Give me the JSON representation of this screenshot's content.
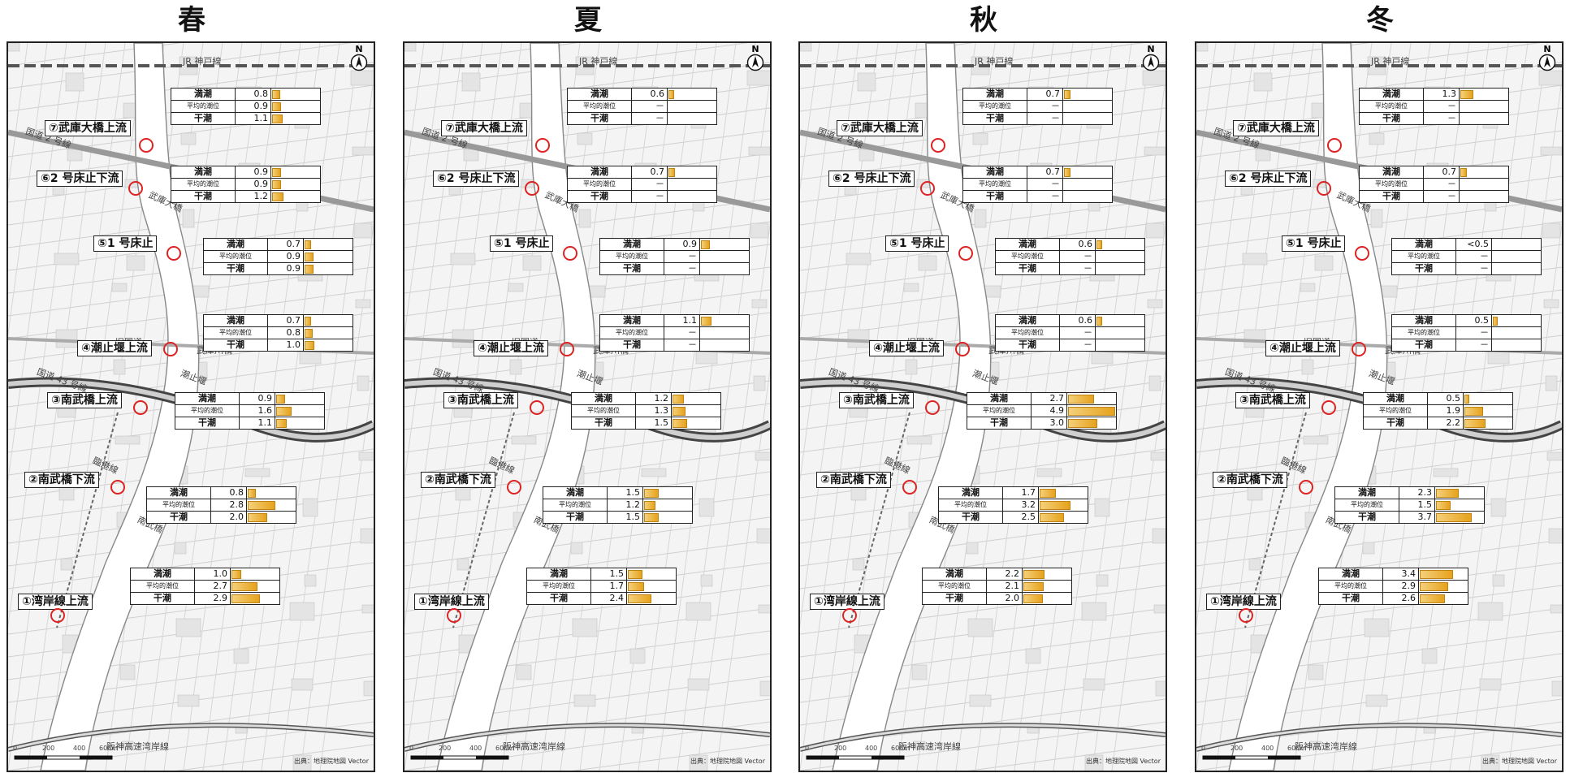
{
  "panels": [
    {
      "season": "春",
      "tables": [
        {
          "rows": [
            {
              "label": "満潮",
              "value": "0.8",
              "bar": 0.8
            },
            {
              "label": "平均的潮位",
              "value": "0.9",
              "bar": 0.9
            },
            {
              "label": "干潮",
              "value": "1.1",
              "bar": 1.1
            }
          ]
        },
        {
          "rows": [
            {
              "label": "満潮",
              "value": "0.9",
              "bar": 0.9
            },
            {
              "label": "平均的潮位",
              "value": "0.9",
              "bar": 0.9
            },
            {
              "label": "干潮",
              "value": "1.2",
              "bar": 1.2
            }
          ]
        },
        {
          "rows": [
            {
              "label": "満潮",
              "value": "0.7",
              "bar": 0.7
            },
            {
              "label": "平均的潮位",
              "value": "0.9",
              "bar": 0.9
            },
            {
              "label": "干潮",
              "value": "0.9",
              "bar": 0.9
            }
          ]
        },
        {
          "rows": [
            {
              "label": "満潮",
              "value": "0.7",
              "bar": 0.7
            },
            {
              "label": "平均的潮位",
              "value": "0.8",
              "bar": 0.8
            },
            {
              "label": "干潮",
              "value": "1.0",
              "bar": 1.0
            }
          ]
        },
        {
          "rows": [
            {
              "label": "満潮",
              "value": "0.9",
              "bar": 0.9
            },
            {
              "label": "平均的潮位",
              "value": "1.6",
              "bar": 1.6
            },
            {
              "label": "干潮",
              "value": "1.1",
              "bar": 1.1
            }
          ]
        },
        {
          "rows": [
            {
              "label": "満潮",
              "value": "0.8",
              "bar": 0.8
            },
            {
              "label": "平均的潮位",
              "value": "2.8",
              "bar": 2.8
            },
            {
              "label": "干潮",
              "value": "2.0",
              "bar": 2.0
            }
          ]
        },
        {
          "rows": [
            {
              "label": "満潮",
              "value": "1.0",
              "bar": 1.0
            },
            {
              "label": "平均的潮位",
              "value": "2.7",
              "bar": 2.7
            },
            {
              "label": "干潮",
              "value": "2.9",
              "bar": 2.9
            }
          ]
        }
      ]
    },
    {
      "season": "夏",
      "tables": [
        {
          "rows": [
            {
              "label": "満潮",
              "value": "0.6",
              "bar": 0.6
            },
            {
              "label": "平均的潮位",
              "value": "－",
              "bar": null
            },
            {
              "label": "干潮",
              "value": "－",
              "bar": null
            }
          ]
        },
        {
          "rows": [
            {
              "label": "満潮",
              "value": "0.7",
              "bar": 0.7
            },
            {
              "label": "平均的潮位",
              "value": "－",
              "bar": null
            },
            {
              "label": "干潮",
              "value": "－",
              "bar": null
            }
          ]
        },
        {
          "rows": [
            {
              "label": "満潮",
              "value": "0.9",
              "bar": 0.9
            },
            {
              "label": "平均的潮位",
              "value": "－",
              "bar": null
            },
            {
              "label": "干潮",
              "value": "－",
              "bar": null
            }
          ]
        },
        {
          "rows": [
            {
              "label": "満潮",
              "value": "1.1",
              "bar": 1.1
            },
            {
              "label": "平均的潮位",
              "value": "－",
              "bar": null
            },
            {
              "label": "干潮",
              "value": "－",
              "bar": null
            }
          ]
        },
        {
          "rows": [
            {
              "label": "満潮",
              "value": "1.2",
              "bar": 1.2
            },
            {
              "label": "平均的潮位",
              "value": "1.3",
              "bar": 1.3
            },
            {
              "label": "干潮",
              "value": "1.5",
              "bar": 1.5
            }
          ]
        },
        {
          "rows": [
            {
              "label": "満潮",
              "value": "1.5",
              "bar": 1.5
            },
            {
              "label": "平均的潮位",
              "value": "1.2",
              "bar": 1.2
            },
            {
              "label": "干潮",
              "value": "1.5",
              "bar": 1.5
            }
          ]
        },
        {
          "rows": [
            {
              "label": "満潮",
              "value": "1.5",
              "bar": 1.5
            },
            {
              "label": "平均的潮位",
              "value": "1.7",
              "bar": 1.7
            },
            {
              "label": "干潮",
              "value": "2.4",
              "bar": 2.4
            }
          ]
        }
      ]
    },
    {
      "season": "秋",
      "tables": [
        {
          "rows": [
            {
              "label": "満潮",
              "value": "0.7",
              "bar": 0.7
            },
            {
              "label": "平均的潮位",
              "value": "－",
              "bar": null
            },
            {
              "label": "干潮",
              "value": "－",
              "bar": null
            }
          ]
        },
        {
          "rows": [
            {
              "label": "満潮",
              "value": "0.7",
              "bar": 0.7
            },
            {
              "label": "平均的潮位",
              "value": "－",
              "bar": null
            },
            {
              "label": "干潮",
              "value": "－",
              "bar": null
            }
          ]
        },
        {
          "rows": [
            {
              "label": "満潮",
              "value": "0.6",
              "bar": 0.6
            },
            {
              "label": "平均的潮位",
              "value": "－",
              "bar": null
            },
            {
              "label": "干潮",
              "value": "－",
              "bar": null
            }
          ]
        },
        {
          "rows": [
            {
              "label": "満潮",
              "value": "0.6",
              "bar": 0.6
            },
            {
              "label": "平均的潮位",
              "value": "－",
              "bar": null
            },
            {
              "label": "干潮",
              "value": "－",
              "bar": null
            }
          ]
        },
        {
          "rows": [
            {
              "label": "満潮",
              "value": "2.7",
              "bar": 2.7
            },
            {
              "label": "平均的潮位",
              "value": "4.9",
              "bar": 4.9
            },
            {
              "label": "干潮",
              "value": "3.0",
              "bar": 3.0
            }
          ]
        },
        {
          "rows": [
            {
              "label": "満潮",
              "value": "1.7",
              "bar": 1.7
            },
            {
              "label": "平均的潮位",
              "value": "3.2",
              "bar": 3.2
            },
            {
              "label": "干潮",
              "value": "2.5",
              "bar": 2.5
            }
          ]
        },
        {
          "rows": [
            {
              "label": "満潮",
              "value": "2.2",
              "bar": 2.2
            },
            {
              "label": "平均的潮位",
              "value": "2.1",
              "bar": 2.1
            },
            {
              "label": "干潮",
              "value": "2.0",
              "bar": 2.0
            }
          ]
        }
      ]
    },
    {
      "season": "冬",
      "tables": [
        {
          "rows": [
            {
              "label": "満潮",
              "value": "1.3",
              "bar": 1.3
            },
            {
              "label": "平均的潮位",
              "value": "－",
              "bar": null
            },
            {
              "label": "干潮",
              "value": "－",
              "bar": null
            }
          ]
        },
        {
          "rows": [
            {
              "label": "満潮",
              "value": "0.7",
              "bar": 0.7
            },
            {
              "label": "平均的潮位",
              "value": "－",
              "bar": null
            },
            {
              "label": "干潮",
              "value": "－",
              "bar": null
            }
          ]
        },
        {
          "rows": [
            {
              "label": "満潮",
              "value": "<0.5",
              "bar": null
            },
            {
              "label": "平均的潮位",
              "value": "－",
              "bar": null
            },
            {
              "label": "干潮",
              "value": "－",
              "bar": null
            }
          ]
        },
        {
          "rows": [
            {
              "label": "満潮",
              "value": "0.5",
              "bar": 0.5
            },
            {
              "label": "平均的潮位",
              "value": "－",
              "bar": null
            },
            {
              "label": "干潮",
              "value": "－",
              "bar": null
            }
          ]
        },
        {
          "rows": [
            {
              "label": "満潮",
              "value": "0.5",
              "bar": 0.5
            },
            {
              "label": "平均的潮位",
              "value": "1.9",
              "bar": 1.9
            },
            {
              "label": "干潮",
              "value": "2.2",
              "bar": 2.2
            }
          ]
        },
        {
          "rows": [
            {
              "label": "満潮",
              "value": "2.3",
              "bar": 2.3
            },
            {
              "label": "平均的潮位",
              "value": "1.5",
              "bar": 1.5
            },
            {
              "label": "干潮",
              "value": "3.7",
              "bar": 3.7
            }
          ]
        },
        {
          "rows": [
            {
              "label": "満潮",
              "value": "3.4",
              "bar": 3.4
            },
            {
              "label": "平均的潮位",
              "value": "2.9",
              "bar": 2.9
            },
            {
              "label": "干潮",
              "value": "2.6",
              "bar": 2.6
            }
          ]
        }
      ]
    }
  ],
  "sites": [
    "⑦武庫大橋上流",
    "⑥2 号床止下流",
    "⑤1 号床止",
    "④潮止堰上流",
    "③南武橋上流",
    "②南武橋下流",
    "①湾岸線上流"
  ],
  "map_labels": {
    "jr": "JR 神戸線",
    "route2": "国道 2 号線",
    "mukobashi": "武庫大橋",
    "kyukokudo": "旧国道",
    "mukogawabashi": "武庫川橋",
    "route43": "国道 43 号線",
    "shiodome": "潮止堰",
    "rinkousen": "臨港線",
    "nanbukyo": "南武橋",
    "hanshin": "阪神高速湾岸線"
  },
  "north": "N",
  "scale_ticks": [
    "0",
    "200",
    "400",
    "600m"
  ],
  "credit": "出典：地理院地図 Vector",
  "icons": {
    "north_arrow": "north-arrow-icon",
    "sample_point": "red-circle"
  },
  "bar_color": "#e6a21c"
}
